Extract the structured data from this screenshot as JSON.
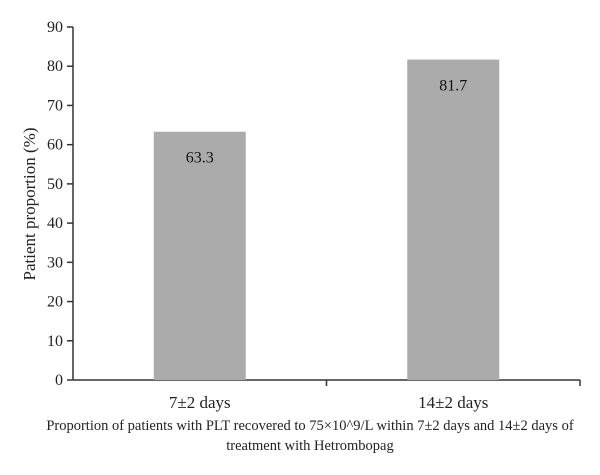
{
  "chart_data": {
    "type": "bar",
    "categories": [
      "7±2 days",
      "14±2 days"
    ],
    "values": [
      63.3,
      81.7
    ],
    "data_labels": [
      "63.3",
      "81.7"
    ],
    "bar_color": "#ababab",
    "ylabel": "Patient proportion (%)",
    "xlabel": "Proportion of patients with PLT recovered to 75×10^9/L within 7±2 days and 14±2 days of treatment with Hetrombopag",
    "ylim": [
      0,
      90
    ],
    "yticks": [
      "0",
      "10",
      "20",
      "30",
      "40",
      "50",
      "60",
      "70",
      "80",
      "90"
    ],
    "grid": false,
    "legend": "none"
  }
}
